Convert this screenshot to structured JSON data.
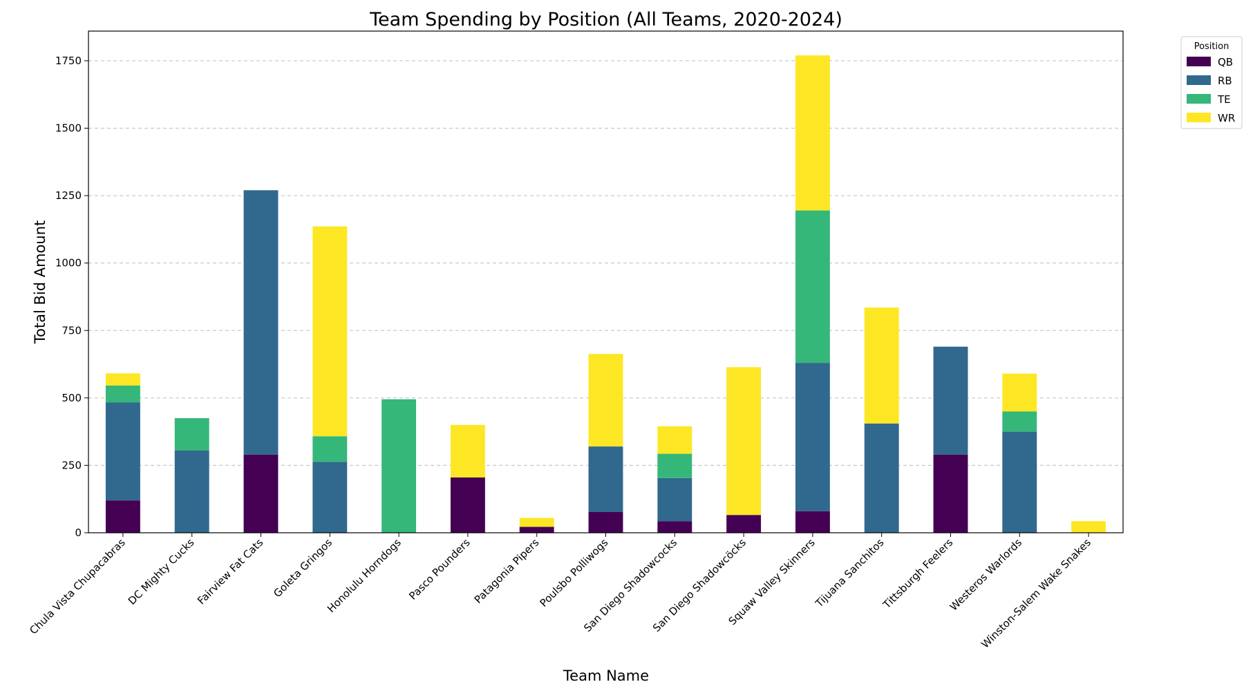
{
  "chart_data": {
    "type": "bar",
    "stacked": true,
    "title": "Team Spending by Position (All Teams, 2020-2024)",
    "xlabel": "Team Name",
    "ylabel": "Total Bid Amount",
    "ylim": [
      0,
      1860
    ],
    "yticks": [
      0,
      250,
      500,
      750,
      1000,
      1250,
      1500,
      1750
    ],
    "grid": "y-dashed",
    "legend": {
      "title": "Position",
      "placement": "outside-top-right"
    },
    "categories": [
      "Chula Vista Chupacabras",
      "DC Mighty Cucks",
      "Fairview Fat Cats",
      "Goleta Gringos",
      "Honolulu Horndogs",
      "Pasco Pounders",
      "Patagonia Pipers",
      "Poulsbo Polliwogs",
      "San Diego Shadowcocks",
      "San Diego Shadowcöcks",
      "Squaw Valley Skinners",
      "Tijuana Sanchitos",
      "Tittsburgh Feelers",
      "Westeros  Warlords",
      "Winston-Salem Wake Snakes"
    ],
    "series": [
      {
        "name": "QB",
        "color": "#440154",
        "values": [
          120,
          0,
          290,
          0,
          0,
          205,
          22,
          77,
          43,
          66,
          80,
          0,
          290,
          0,
          0
        ]
      },
      {
        "name": "RB",
        "color": "#31688e",
        "values": [
          363,
          305,
          980,
          263,
          0,
          0,
          0,
          243,
          160,
          0,
          550,
          405,
          400,
          375,
          0
        ]
      },
      {
        "name": "TE",
        "color": "#35b779",
        "values": [
          63,
          120,
          0,
          95,
          495,
          0,
          0,
          0,
          90,
          0,
          565,
          0,
          0,
          75,
          0
        ]
      },
      {
        "name": "WR",
        "color": "#fde725",
        "values": [
          45,
          0,
          0,
          778,
          0,
          195,
          33,
          343,
          102,
          548,
          575,
          430,
          0,
          140,
          43
        ]
      }
    ]
  }
}
